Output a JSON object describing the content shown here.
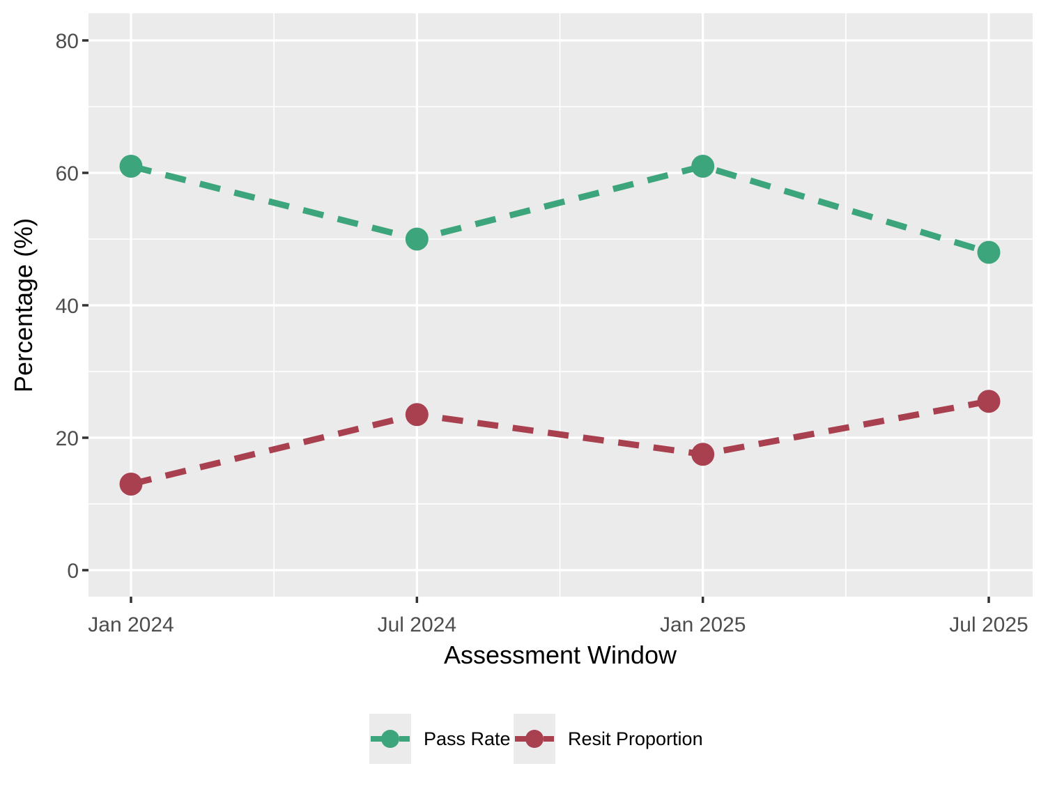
{
  "figure": {
    "background": "#FFFFFF"
  },
  "chart_data": {
    "type": "line",
    "title": "",
    "xlabel": "Assessment Window",
    "ylabel": "Percentage (%)",
    "categories": [
      "Jan 2024",
      "Jul 2024",
      "Jan 2025",
      "Jul 2025"
    ],
    "series": [
      {
        "name": "Pass Rate",
        "values": [
          61,
          50,
          61,
          48
        ],
        "color": "#3CA57B"
      },
      {
        "name": "Resit Proportion",
        "values": [
          13,
          23.5,
          17.5,
          25.5
        ],
        "color": "#A9404F"
      }
    ],
    "y_ticks": [
      0,
      20,
      40,
      60,
      80
    ],
    "y_minor_ticks": [
      10,
      30,
      50,
      70
    ],
    "ylim": [
      -4,
      84.2
    ],
    "line_style": "dashed",
    "marker": "circle",
    "grid": {
      "major": true,
      "minor": true,
      "color": "#FFFFFF"
    },
    "panel_background": "#EBEBEB",
    "legend": {
      "position": "bottom",
      "key_background": "#EBEBEB"
    },
    "axis": {
      "tick_label_color": "#4D4D4D",
      "title_color": "#000000",
      "tick_mark_color": "#333333"
    }
  }
}
